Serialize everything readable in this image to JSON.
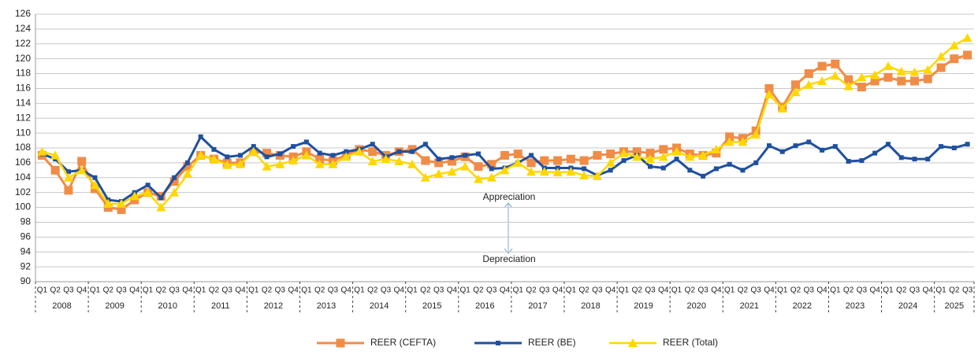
{
  "chart_data": {
    "type": "line",
    "categories": [
      "Q1",
      "Q2",
      "Q3",
      "Q4",
      "Q1",
      "Q2",
      "Q3",
      "Q4",
      "Q1",
      "Q2",
      "Q3",
      "Q4",
      "Q1",
      "Q2",
      "Q3",
      "Q4",
      "Q1",
      "Q2",
      "Q3",
      "Q4",
      "Q1",
      "Q2",
      "Q3",
      "Q4",
      "Q1",
      "Q2",
      "Q3",
      "Q4",
      "Q1",
      "Q2",
      "Q3",
      "Q4",
      "Q1",
      "Q2",
      "Q3",
      "Q4",
      "Q1",
      "Q2",
      "Q3",
      "Q4",
      "Q1",
      "Q2",
      "Q3",
      "Q4",
      "Q1",
      "Q2",
      "Q3",
      "Q4",
      "Q1",
      "Q2",
      "Q3",
      "Q4",
      "Q1",
      "Q2",
      "Q3",
      "Q4",
      "Q1",
      "Q2",
      "Q3",
      "Q4",
      "Q1",
      "Q2",
      "Q3",
      "Q4",
      "Q1",
      "Q2",
      "Q3",
      "Q4",
      "Q1",
      "Q2",
      "Q3"
    ],
    "years": [
      "2008",
      "2009",
      "2010",
      "2011",
      "2012",
      "2013",
      "2014",
      "2015",
      "2016",
      "2017",
      "2018",
      "2019",
      "2020",
      "2021",
      "2022",
      "2023",
      "2024",
      "2025"
    ],
    "series": [
      {
        "name": "REER (CEFTA)",
        "color": "#F08C46",
        "values": [
          107,
          105,
          102.3,
          106.2,
          102.5,
          100,
          99.7,
          101,
          102,
          101.5,
          103.5,
          105.5,
          107,
          106.5,
          106,
          106,
          107.5,
          107.3,
          107,
          106.8,
          107.5,
          106.5,
          106.3,
          107,
          107.8,
          107.5,
          107,
          107.5,
          107.8,
          106.3,
          106,
          106.2,
          106.8,
          105.5,
          105.8,
          107,
          107.2,
          106,
          106.3,
          106.3,
          106.5,
          106.3,
          107,
          107.2,
          107.5,
          107.5,
          107.3,
          107.8,
          108,
          107.2,
          107,
          107.3,
          109.5,
          109.3,
          110.3,
          116,
          113.5,
          116.5,
          118,
          119,
          119.3,
          117.2,
          116.2,
          117,
          117.5,
          117,
          117,
          117.3,
          118.8,
          120,
          120.5
        ]
      },
      {
        "name": "REER (BE)",
        "color": "#1F50A0",
        "values": [
          107.2,
          106.5,
          104.8,
          105,
          104,
          101,
          100.8,
          102,
          103,
          101.3,
          104,
          106,
          109.5,
          107.8,
          106.8,
          107,
          108.2,
          106.8,
          107.2,
          108.2,
          108.8,
          107.3,
          107,
          107.5,
          107.8,
          108.5,
          106.8,
          107.5,
          107.5,
          108.5,
          106.5,
          106.7,
          107,
          107.2,
          105.2,
          105.3,
          106,
          107,
          105.3,
          105.3,
          105.3,
          105.2,
          104.3,
          105,
          106.3,
          107,
          105.5,
          105.3,
          106.5,
          105,
          104.2,
          105.2,
          105.8,
          105,
          106,
          108.3,
          107.5,
          108.3,
          108.8,
          107.7,
          108.2,
          106.2,
          106.3,
          107.3,
          108.5,
          106.7,
          106.5,
          106.5,
          108.2,
          108,
          108.5
        ]
      },
      {
        "name": "REER (Total)",
        "color": "#FFD700",
        "values": [
          107.5,
          107,
          104,
          105,
          103,
          100.5,
          100.5,
          101.5,
          102,
          100,
          102,
          104.5,
          107,
          106.5,
          105.7,
          105.8,
          107.5,
          105.5,
          105.8,
          106.3,
          107,
          105.8,
          105.8,
          106.8,
          107.5,
          106.2,
          106.5,
          106.2,
          105.8,
          104,
          104.5,
          104.8,
          105.5,
          103.8,
          104,
          105,
          106,
          104.8,
          104.8,
          104.7,
          104.8,
          104.3,
          104.2,
          106,
          107.3,
          106.8,
          106.5,
          106.8,
          107.5,
          106.8,
          107,
          107.8,
          108.8,
          108.8,
          109.8,
          115.2,
          113.3,
          115.5,
          116.5,
          117,
          117.7,
          116.3,
          117.5,
          117.8,
          119,
          118.3,
          118.2,
          118.5,
          120.3,
          121.8,
          122.8
        ]
      }
    ],
    "annotations": [
      "Appreciation",
      "Depreciation"
    ],
    "ylim": [
      90,
      126
    ],
    "yticks": [
      90,
      92,
      94,
      96,
      98,
      100,
      102,
      104,
      106,
      108,
      110,
      112,
      114,
      116,
      118,
      120,
      122,
      124,
      126
    ],
    "grid": true,
    "legend": "bottom"
  }
}
